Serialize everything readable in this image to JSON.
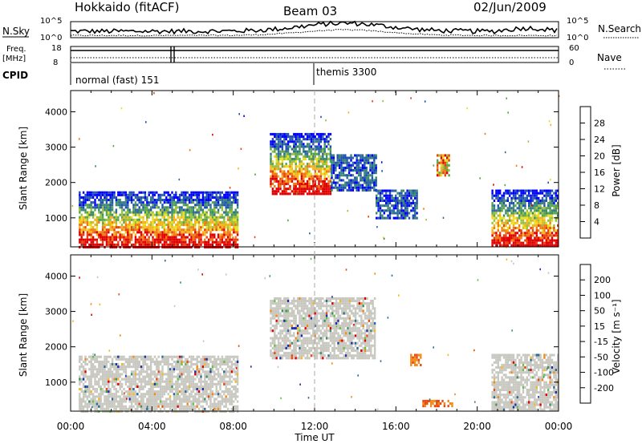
{
  "header": {
    "station": "Hokkaido (fitACF)",
    "beam": "Beam 03",
    "date": "02/Jun/2009"
  },
  "summary": {
    "nsky_label": "N.Sky",
    "nsky_ticks": [
      "10^5",
      "10^0"
    ],
    "nsearch_label": "N.Search",
    "nsearch_ticks": [
      "10^5",
      "10^0"
    ],
    "freq_label_line1": "Freq.",
    "freq_label_line2": "[MHz]",
    "freq_ticks": [
      "18",
      "8"
    ],
    "nave_label": "Nave",
    "nave_ticks": [
      "60",
      "0"
    ],
    "cpid_label": "CPID",
    "cpid_modes": [
      {
        "name": "normal (fast) 151",
        "start_hour": 0
      },
      {
        "name": "themis 3300",
        "start_hour": 12
      }
    ]
  },
  "chart_data": [
    {
      "type": "heatmap",
      "title": "Power",
      "ylabel": "Slant Range [km]",
      "xlabel": "",
      "ylim": [
        180,
        4600
      ],
      "yticks": [
        "1000",
        "2000",
        "3000",
        "4000"
      ],
      "colorbar_label": "Power [dB]",
      "colorbar_ticks": [
        "28",
        "24",
        "20",
        "16",
        "12",
        "8",
        "4"
      ],
      "colorscale": [
        "#0000ff",
        "#1f4fb3",
        "#2f6a9a",
        "#3b8a6e",
        "#5aa64a",
        "#9cc23a",
        "#e8e020",
        "#f6b21a",
        "#f07a14",
        "#e8420e",
        "#e00000"
      ],
      "regions": [
        {
          "hour_start": 0.4,
          "hour_end": 8.2,
          "range_start": 200,
          "range_end": 1750,
          "level": "mixed"
        },
        {
          "hour_start": 9.8,
          "hour_end": 12.8,
          "range_start": 1700,
          "range_end": 3400,
          "level": "mixed"
        },
        {
          "hour_start": 12.8,
          "hour_end": 15.0,
          "range_start": 1800,
          "range_end": 2800,
          "level": "low"
        },
        {
          "hour_start": 15.0,
          "hour_end": 17.0,
          "range_start": 1000,
          "range_end": 1800,
          "level": "low"
        },
        {
          "hour_start": 18.0,
          "hour_end": 18.6,
          "range_start": 2200,
          "range_end": 2800,
          "level": "high"
        },
        {
          "hour_start": 20.7,
          "hour_end": 24.0,
          "range_start": 200,
          "range_end": 1800,
          "level": "mixed"
        }
      ]
    },
    {
      "type": "heatmap",
      "title": "Velocity",
      "ylabel": "Slant Range [km]",
      "xlabel": "Time UT",
      "ylim": [
        180,
        4600
      ],
      "yticks": [
        "1000",
        "2000",
        "3000",
        "4000"
      ],
      "xticks": [
        "00:00",
        "04:00",
        "08:00",
        "12:00",
        "16:00",
        "20:00",
        "00:00"
      ],
      "xlim_hours": [
        0,
        24
      ],
      "colorbar_label": "Velocity [m s⁻¹]",
      "colorbar_ticks": [
        "200",
        "100",
        "50",
        "15",
        "-15",
        "-50",
        "-100",
        "-200"
      ],
      "colorscale": [
        "#1a2fa8",
        "#2e6a96",
        "#3d8f66",
        "#66c04a",
        "#c8c8c0",
        "#c8c8c0",
        "#f2b820",
        "#f08a14",
        "#ea4a10",
        "#e00000"
      ],
      "regions": [
        {
          "hour_start": 0.4,
          "hour_end": 8.2,
          "range_start": 200,
          "range_end": 1750,
          "level": "grey"
        },
        {
          "hour_start": 9.8,
          "hour_end": 15.0,
          "range_start": 1700,
          "range_end": 3400,
          "level": "grey"
        },
        {
          "hour_start": 16.7,
          "hour_end": 17.2,
          "range_start": 1500,
          "range_end": 1800,
          "level": "orange"
        },
        {
          "hour_start": 17.3,
          "hour_end": 18.8,
          "range_start": 350,
          "range_end": 500,
          "level": "orange"
        },
        {
          "hour_start": 20.7,
          "hour_end": 24.0,
          "range_start": 200,
          "range_end": 1800,
          "level": "grey"
        }
      ]
    }
  ]
}
